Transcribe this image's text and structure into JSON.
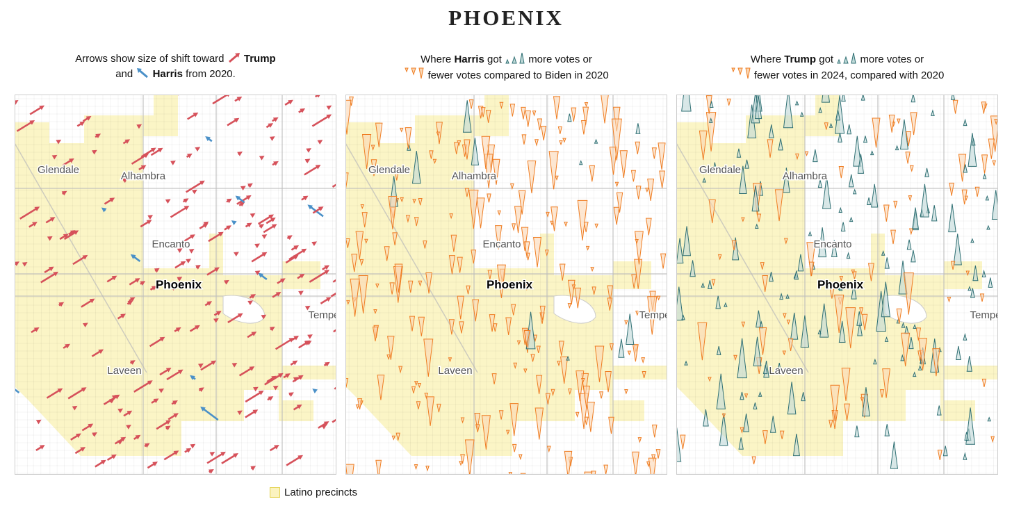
{
  "title": "PHOENIX",
  "panels": [
    {
      "caption": [
        "Arrows show size of shift toward",
        "Trump",
        "and",
        "Harris",
        "from 2020."
      ]
    },
    {
      "caption": [
        "Where",
        "Harris",
        "got",
        "more votes or",
        "fewer votes compared to Biden in 2020"
      ]
    },
    {
      "caption": [
        "Where",
        "Trump",
        "got",
        "more votes or",
        "fewer votes in 2024, compared with 2020"
      ]
    }
  ],
  "places": [
    "Glendale",
    "Alhambra",
    "Encanto",
    "Phoenix",
    "Tempe",
    "Laveen"
  ],
  "legend": "Latino precincts"
}
